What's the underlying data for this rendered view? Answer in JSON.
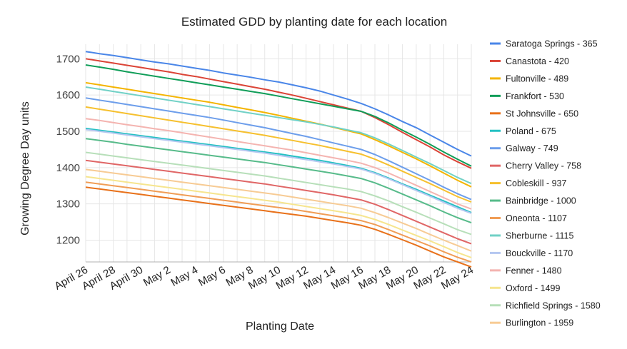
{
  "chart_data": {
    "type": "line",
    "title": "Estimated GDD by planting date for each location",
    "xlabel": "Planting Date",
    "ylabel": "Growing Degree Day units",
    "ylim": [
      1140,
      1740
    ],
    "yticks": [
      1200,
      1300,
      1400,
      1500,
      1600,
      1700
    ],
    "grid": true,
    "legend_position": "right",
    "categories": [
      "April 26",
      "April 27",
      "April 28",
      "April 29",
      "April 30",
      "May 1",
      "May 2",
      "May 3",
      "May 4",
      "May 5",
      "May 6",
      "May 7",
      "May 8",
      "May 9",
      "May 10",
      "May 11",
      "May 12",
      "May 13",
      "May 14",
      "May 15",
      "May 16",
      "May 17",
      "May 18",
      "May 19",
      "May 20",
      "May 21",
      "May 22",
      "May 23",
      "May 24"
    ],
    "xtick_labels": [
      "April 26",
      "April 28",
      "April 30",
      "May 2",
      "May 4",
      "May 6",
      "May 8",
      "May 10",
      "May 12",
      "May 14",
      "May 16",
      "May 18",
      "May 20",
      "May 22",
      "May 24"
    ],
    "series": [
      {
        "name": "Saratoga Springs - 365",
        "color": "#4a86e8",
        "values": [
          1720,
          1714,
          1709,
          1703,
          1697,
          1691,
          1686,
          1680,
          1674,
          1668,
          1661,
          1655,
          1649,
          1642,
          1636,
          1628,
          1620,
          1611,
          1600,
          1589,
          1577,
          1562,
          1545,
          1527,
          1510,
          1490,
          1470,
          1450,
          1432
        ]
      },
      {
        "name": "Canastota - 420",
        "color": "#db4437",
        "values": [
          1700,
          1694,
          1688,
          1682,
          1676,
          1670,
          1664,
          1657,
          1651,
          1644,
          1637,
          1630,
          1623,
          1616,
          1608,
          1600,
          1591,
          1582,
          1573,
          1564,
          1555,
          1538,
          1518,
          1497,
          1477,
          1457,
          1435,
          1416,
          1398
        ]
      },
      {
        "name": "Fultonville - 489",
        "color": "#f4b400",
        "values": [
          1634,
          1628,
          1622,
          1616,
          1610,
          1604,
          1598,
          1592,
          1586,
          1580,
          1573,
          1566,
          1559,
          1552,
          1544,
          1536,
          1528,
          1520,
          1511,
          1502,
          1493,
          1477,
          1460,
          1442,
          1424,
          1405,
          1385,
          1365,
          1347
        ]
      },
      {
        "name": "Frankfort - 530",
        "color": "#0f9d58",
        "values": [
          1683,
          1677,
          1671,
          1664,
          1658,
          1652,
          1646,
          1640,
          1634,
          1628,
          1622,
          1616,
          1610,
          1604,
          1597,
          1590,
          1583,
          1576,
          1569,
          1562,
          1555,
          1541,
          1523,
          1503,
          1484,
          1464,
          1443,
          1423,
          1404
        ]
      },
      {
        "name": "St Johnsville - 650",
        "color": "#e8711a",
        "values": [
          1346,
          1341,
          1336,
          1331,
          1326,
          1321,
          1316,
          1311,
          1306,
          1301,
          1296,
          1291,
          1286,
          1281,
          1276,
          1271,
          1266,
          1260,
          1254,
          1248,
          1241,
          1230,
          1216,
          1201,
          1186,
          1170,
          1154,
          1140,
          1126
        ]
      },
      {
        "name": "Poland - 675",
        "color": "#24c1c3",
        "values": [
          1508,
          1503,
          1498,
          1493,
          1488,
          1483,
          1478,
          1473,
          1468,
          1463,
          1458,
          1453,
          1448,
          1443,
          1438,
          1432,
          1426,
          1420,
          1413,
          1406,
          1398,
          1386,
          1371,
          1355,
          1340,
          1324,
          1308,
          1292,
          1276
        ]
      },
      {
        "name": "Galway - 749",
        "color": "#6d9eeb",
        "values": [
          1592,
          1586,
          1580,
          1574,
          1568,
          1562,
          1556,
          1550,
          1544,
          1538,
          1531,
          1524,
          1517,
          1510,
          1502,
          1494,
          1486,
          1477,
          1468,
          1459,
          1450,
          1436,
          1419,
          1401,
          1383,
          1365,
          1346,
          1328,
          1312
        ]
      },
      {
        "name": "Cherry Valley - 758",
        "color": "#e06666",
        "values": [
          1420,
          1415,
          1410,
          1405,
          1400,
          1395,
          1390,
          1385,
          1380,
          1375,
          1370,
          1365,
          1360,
          1355,
          1349,
          1343,
          1337,
          1331,
          1325,
          1318,
          1311,
          1299,
          1284,
          1268,
          1252,
          1236,
          1220,
          1204,
          1190
        ]
      },
      {
        "name": "Cobleskill - 937",
        "color": "#f6c02e",
        "values": [
          1567,
          1561,
          1555,
          1549,
          1543,
          1537,
          1531,
          1525,
          1519,
          1513,
          1507,
          1501,
          1495,
          1489,
          1482,
          1475,
          1468,
          1461,
          1453,
          1445,
          1437,
          1423,
          1407,
          1390,
          1373,
          1356,
          1338,
          1320,
          1305
        ]
      },
      {
        "name": "Bainbridge - 1000",
        "color": "#57bb8a",
        "values": [
          1480,
          1475,
          1470,
          1464,
          1459,
          1454,
          1449,
          1444,
          1439,
          1434,
          1429,
          1424,
          1419,
          1414,
          1408,
          1402,
          1396,
          1390,
          1384,
          1377,
          1370,
          1358,
          1343,
          1327,
          1311,
          1295,
          1278,
          1262,
          1248
        ]
      },
      {
        "name": "Oneonta - 1107",
        "color": "#f09d56",
        "values": [
          1360,
          1355,
          1350,
          1345,
          1340,
          1335,
          1330,
          1325,
          1320,
          1315,
          1310,
          1305,
          1300,
          1295,
          1290,
          1285,
          1279,
          1273,
          1267,
          1261,
          1254,
          1243,
          1229,
          1214,
          1199,
          1184,
          1168,
          1153,
          1140
        ]
      },
      {
        "name": "Sherburne - 1115",
        "color": "#71d1c6",
        "values": [
          1622,
          1616,
          1610,
          1604,
          1598,
          1592,
          1586,
          1580,
          1574,
          1568,
          1562,
          1556,
          1550,
          1544,
          1538,
          1532,
          1526,
          1519,
          1512,
          1504,
          1496,
          1482,
          1465,
          1447,
          1429,
          1411,
          1392,
          1373,
          1356
        ]
      },
      {
        "name": "Bouckville - 1170",
        "color": "#b4c7f0",
        "values": [
          1505,
          1500,
          1495,
          1490,
          1485,
          1480,
          1475,
          1470,
          1465,
          1460,
          1455,
          1450,
          1445,
          1440,
          1434,
          1428,
          1422,
          1416,
          1410,
          1403,
          1396,
          1384,
          1369,
          1353,
          1337,
          1321,
          1304,
          1288,
          1274
        ]
      },
      {
        "name": "Fenner - 1480",
        "color": "#f4b4b0",
        "values": [
          1535,
          1530,
          1524,
          1518,
          1513,
          1507,
          1502,
          1496,
          1490,
          1484,
          1478,
          1472,
          1466,
          1460,
          1454,
          1448,
          1441,
          1434,
          1427,
          1420,
          1412,
          1400,
          1385,
          1368,
          1351,
          1334,
          1317,
          1300,
          1286
        ]
      },
      {
        "name": "Oxford - 1499",
        "color": "#f6e58e",
        "values": [
          1375,
          1370,
          1365,
          1360,
          1355,
          1350,
          1345,
          1340,
          1335,
          1330,
          1325,
          1320,
          1315,
          1310,
          1305,
          1299,
          1293,
          1287,
          1281,
          1275,
          1268,
          1257,
          1243,
          1228,
          1213,
          1198,
          1182,
          1166,
          1152
        ]
      },
      {
        "name": "Richfield Springs - 1580",
        "color": "#b7dfb9",
        "values": [
          1442,
          1437,
          1432,
          1427,
          1422,
          1417,
          1412,
          1407,
          1402,
          1397,
          1392,
          1387,
          1382,
          1377,
          1371,
          1365,
          1359,
          1353,
          1347,
          1341,
          1334,
          1322,
          1308,
          1292,
          1277,
          1261,
          1245,
          1229,
          1216
        ]
      },
      {
        "name": "Burlington - 1959",
        "color": "#f7cb94",
        "values": [
          1395,
          1390,
          1385,
          1380,
          1375,
          1370,
          1365,
          1360,
          1355,
          1350,
          1345,
          1340,
          1335,
          1330,
          1325,
          1319,
          1313,
          1307,
          1301,
          1295,
          1288,
          1276,
          1262,
          1247,
          1232,
          1216,
          1200,
          1185,
          1170
        ]
      }
    ]
  }
}
